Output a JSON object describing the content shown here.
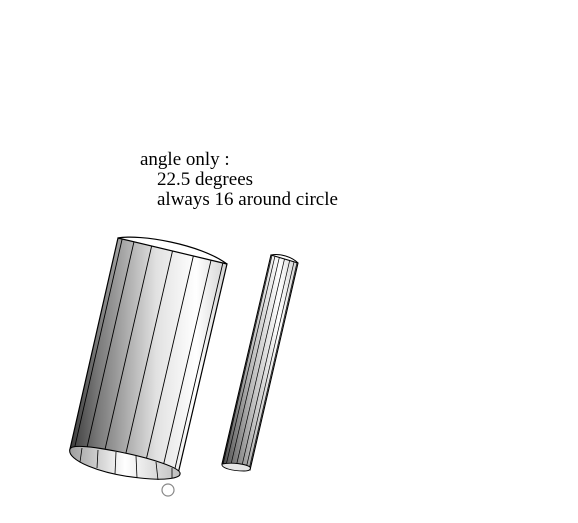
{
  "annotation": {
    "line1": "angle only :",
    "line2": "22.5 degrees",
    "line3": "always 16 around circle"
  },
  "scene": {
    "segments_around_circle": 16,
    "angle_degrees": 22.5,
    "objects": [
      {
        "name": "large-cylinder"
      },
      {
        "name": "thin-cylinder"
      }
    ],
    "pivot_marker": "circle-outline",
    "colors": {
      "background": "#ffffff",
      "edge": "#000000",
      "shade_dark": "#3a3a3a",
      "shade_light": "#ffffff",
      "marker": "#888888"
    }
  }
}
